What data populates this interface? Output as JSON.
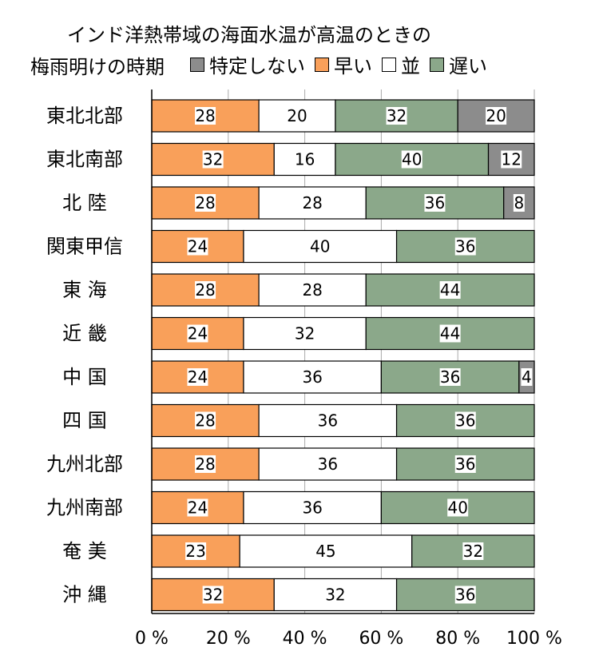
{
  "title_line1": "インド洋熱帯域の海面水温が高温のときの",
  "title_line2": "梅雨明けの時期",
  "legend": [
    {
      "key": "unspecified",
      "label": "特定しない",
      "color": "#8c8c8c"
    },
    {
      "key": "early",
      "label": "早い",
      "color": "#f9a05a"
    },
    {
      "key": "normal",
      "label": "並",
      "color": "#ffffff"
    },
    {
      "key": "late",
      "label": "遅い",
      "color": "#8ba88a"
    }
  ],
  "chart_data": {
    "type": "bar",
    "orientation": "horizontal",
    "stacked": true,
    "title": "インド洋熱帯域の海面水温が高温のときの梅雨明けの時期",
    "categories": [
      "東北北部",
      "東北南部",
      "北 陸",
      "関東甲信",
      "東 海",
      "近 畿",
      "中 国",
      "四 国",
      "九州北部",
      "九州南部",
      "奄 美",
      "沖 縄"
    ],
    "series": [
      {
        "name": "早い",
        "color": "#f9a05a",
        "values": [
          28,
          32,
          28,
          24,
          28,
          24,
          24,
          28,
          28,
          24,
          23,
          32
        ]
      },
      {
        "name": "並",
        "color": "#ffffff",
        "values": [
          20,
          16,
          28,
          40,
          28,
          32,
          36,
          36,
          36,
          36,
          45,
          32
        ]
      },
      {
        "name": "遅い",
        "color": "#8ba88a",
        "values": [
          32,
          40,
          36,
          36,
          44,
          44,
          36,
          36,
          36,
          40,
          32,
          36
        ]
      },
      {
        "name": "特定しない",
        "color": "#8c8c8c",
        "values": [
          20,
          12,
          8,
          0,
          0,
          0,
          4,
          0,
          0,
          0,
          0,
          0
        ]
      }
    ],
    "xlim": [
      0,
      100
    ],
    "xticks": [
      "0 %",
      "20 %",
      "40 %",
      "60 %",
      "80 %",
      "100 %"
    ],
    "grid": "vertical"
  }
}
